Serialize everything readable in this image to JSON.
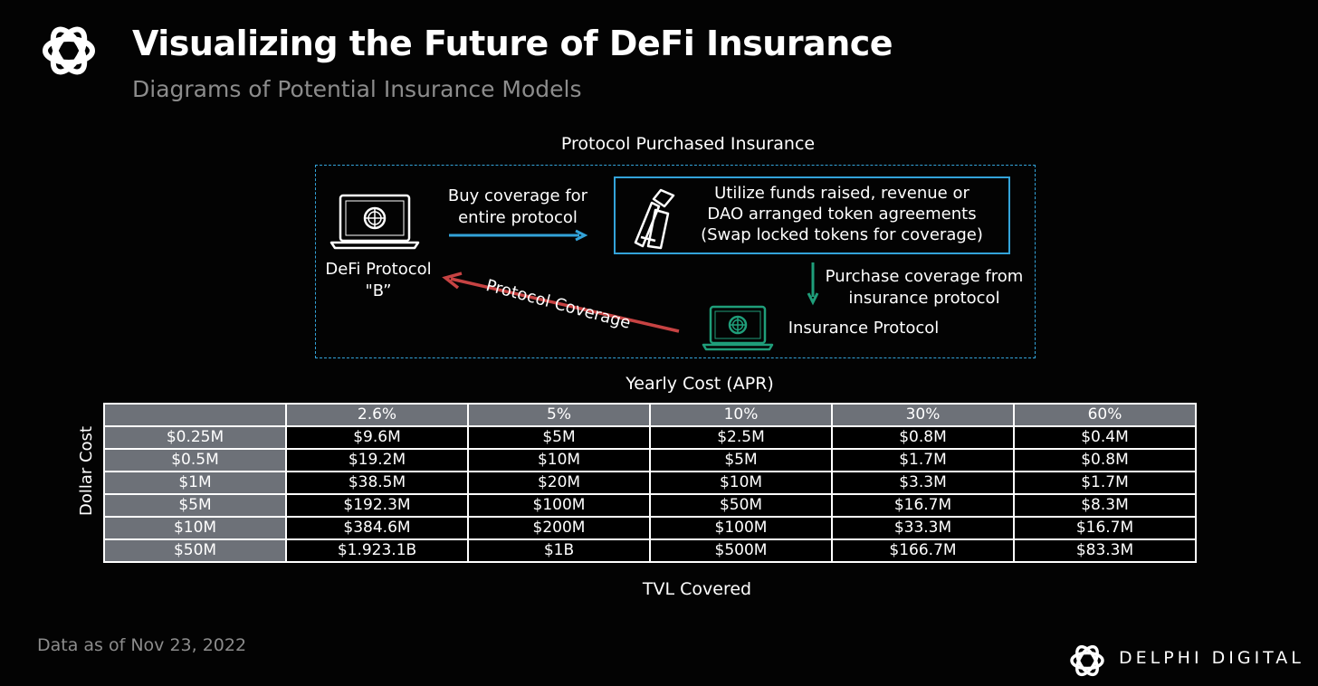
{
  "header": {
    "title": "Visualizing the Future of DeFi Insurance",
    "subtitle": "Diagrams of Potential Insurance Models"
  },
  "diagram": {
    "title": "Protocol Purchased Insurance",
    "defi_protocol_label": "DeFi Protocol\n\"B”",
    "buy_coverage_label": "Buy coverage for\nentire protocol",
    "funds_label": "Utilize funds raised, revenue or\nDAO arranged token agreements\n(Swap locked tokens for coverage)",
    "purchase_coverage_label": "Purchase coverage from\ninsurance protocol",
    "insurance_protocol_label": "Insurance Protocol",
    "protocol_coverage_label": "Protocol Coverage",
    "colors": {
      "accent_blue": "#33a3d9",
      "green": "#1f9e7a",
      "red": "#c74343"
    }
  },
  "table": {
    "caption": "Yearly Cost (APR)",
    "row_axis_label": "Dollar Cost",
    "bottom_caption": "TVL Covered",
    "columns": [
      "2.6%",
      "5%",
      "10%",
      "30%",
      "60%"
    ],
    "rows": [
      {
        "label": "$0.25M",
        "cells": [
          "$9.6M",
          "$5M",
          "$2.5M",
          "$0.8M",
          "$0.4M"
        ]
      },
      {
        "label": "$0.5M",
        "cells": [
          "$19.2M",
          "$10M",
          "$5M",
          "$1.7M",
          "$0.8M"
        ]
      },
      {
        "label": "$1M",
        "cells": [
          "$38.5M",
          "$20M",
          "$10M",
          "$3.3M",
          "$1.7M"
        ]
      },
      {
        "label": "$5M",
        "cells": [
          "$192.3M",
          "$100M",
          "$50M",
          "$16.7M",
          "$8.3M"
        ]
      },
      {
        "label": "$10M",
        "cells": [
          "$384.6M",
          "$200M",
          "$100M",
          "$33.3M",
          "$16.7M"
        ]
      },
      {
        "label": "$50M",
        "cells": [
          "$1.923.1B",
          "$1B",
          "$500M",
          "$166.7M",
          "$83.3M"
        ]
      }
    ],
    "header_color": "#6d7178"
  },
  "footer": {
    "note": "Data as of Nov 23, 2022",
    "brand": "DELPHI DIGITAL"
  },
  "icons": {
    "logo": "delphi-knot-logo-icon",
    "laptop": "laptop-globe-icon",
    "funds": "token-stack-icon"
  }
}
